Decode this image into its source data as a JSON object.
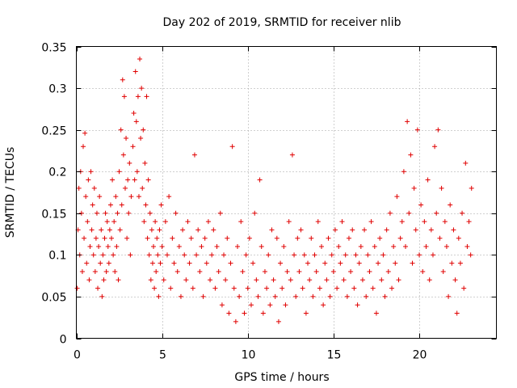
{
  "chart_data": {
    "type": "scatter",
    "title": "Day 202 of 2019, SRMTID for receiver nlib",
    "xlabel": "GPS time / hours",
    "ylabel": "SRMTID / TECUs",
    "xlim": [
      0,
      24.5
    ],
    "ylim": [
      0,
      0.35
    ],
    "xticks": [
      0,
      5,
      10,
      15,
      20
    ],
    "xtick_labels": [
      "0",
      "5",
      "10",
      "15",
      "20"
    ],
    "yticks": [
      0,
      0.05,
      0.1,
      0.15,
      0.2,
      0.25,
      0.3,
      0.35
    ],
    "ytick_labels": [
      "0",
      "0.05",
      "0.1",
      "0.15",
      "0.2",
      "0.25",
      "0.3",
      "0.35"
    ],
    "grid": true,
    "marker": "+",
    "series": [
      {
        "name": "SRMTID",
        "color": "#e00000",
        "points": [
          [
            0.05,
            0.06
          ],
          [
            0.1,
            0.13
          ],
          [
            0.15,
            0.18
          ],
          [
            0.2,
            0.1
          ],
          [
            0.25,
            0.2
          ],
          [
            0.3,
            0.15
          ],
          [
            0.35,
            0.08
          ],
          [
            0.4,
            0.23
          ],
          [
            0.45,
            0.12
          ],
          [
            0.5,
            0.246
          ],
          [
            0.55,
            0.17
          ],
          [
            0.6,
            0.09
          ],
          [
            0.65,
            0.14
          ],
          [
            0.7,
            0.19
          ],
          [
            0.75,
            0.07
          ],
          [
            0.8,
            0.11
          ],
          [
            0.85,
            0.2
          ],
          [
            0.9,
            0.13
          ],
          [
            0.95,
            0.16
          ],
          [
            1.0,
            0.1
          ],
          [
            1.05,
            0.18
          ],
          [
            1.1,
            0.08
          ],
          [
            1.15,
            0.12
          ],
          [
            1.2,
            0.15
          ],
          [
            1.25,
            0.06
          ],
          [
            1.3,
            0.11
          ],
          [
            1.35,
            0.17
          ],
          [
            1.4,
            0.09
          ],
          [
            1.45,
            0.13
          ],
          [
            1.5,
            0.05
          ],
          [
            1.55,
            0.1
          ],
          [
            1.6,
            0.07
          ],
          [
            1.65,
            0.12
          ],
          [
            1.7,
            0.15
          ],
          [
            1.75,
            0.08
          ],
          [
            1.8,
            0.14
          ],
          [
            1.85,
            0.11
          ],
          [
            1.9,
            0.09
          ],
          [
            1.95,
            0.13
          ],
          [
            2.0,
            0.16
          ],
          [
            2.05,
            0.12
          ],
          [
            2.1,
            0.19
          ],
          [
            2.15,
            0.1
          ],
          [
            2.2,
            0.14
          ],
          [
            2.25,
            0.08
          ],
          [
            2.3,
            0.17
          ],
          [
            2.35,
            0.11
          ],
          [
            2.4,
            0.15
          ],
          [
            2.45,
            0.07
          ],
          [
            2.5,
            0.2
          ],
          [
            2.55,
            0.13
          ],
          [
            2.6,
            0.25
          ],
          [
            2.65,
            0.16
          ],
          [
            2.7,
            0.31
          ],
          [
            2.75,
            0.22
          ],
          [
            2.8,
            0.29
          ],
          [
            2.85,
            0.18
          ],
          [
            2.9,
            0.24
          ],
          [
            2.95,
            0.12
          ],
          [
            3.0,
            0.19
          ],
          [
            3.05,
            0.15
          ],
          [
            3.1,
            0.21
          ],
          [
            3.15,
            0.1
          ],
          [
            3.2,
            0.17
          ],
          [
            3.3,
            0.23
          ],
          [
            3.35,
            0.27
          ],
          [
            3.4,
            0.19
          ],
          [
            3.45,
            0.32
          ],
          [
            3.5,
            0.26
          ],
          [
            3.55,
            0.2
          ],
          [
            3.6,
            0.29
          ],
          [
            3.65,
            0.17
          ],
          [
            3.7,
            0.335
          ],
          [
            3.75,
            0.24
          ],
          [
            3.8,
            0.3
          ],
          [
            3.85,
            0.18
          ],
          [
            3.9,
            0.25
          ],
          [
            3.95,
            0.14
          ],
          [
            4.0,
            0.21
          ],
          [
            4.05,
            0.16
          ],
          [
            4.1,
            0.29
          ],
          [
            4.15,
            0.12
          ],
          [
            4.2,
            0.19
          ],
          [
            4.25,
            0.1
          ],
          [
            4.3,
            0.15
          ],
          [
            4.35,
            0.07
          ],
          [
            4.4,
            0.13
          ],
          [
            4.45,
            0.09
          ],
          [
            4.5,
            0.11
          ],
          [
            4.55,
            0.06
          ],
          [
            4.6,
            0.14
          ],
          [
            4.65,
            0.08
          ],
          [
            4.7,
            0.12
          ],
          [
            4.75,
            0.1
          ],
          [
            4.8,
            0.05
          ],
          [
            4.85,
            0.13
          ],
          [
            4.9,
            0.09
          ],
          [
            4.95,
            0.16
          ],
          [
            5.0,
            0.11
          ],
          [
            5.1,
            0.07
          ],
          [
            5.2,
            0.14
          ],
          [
            5.3,
            0.1
          ],
          [
            5.4,
            0.17
          ],
          [
            5.5,
            0.06
          ],
          [
            5.6,
            0.12
          ],
          [
            5.7,
            0.09
          ],
          [
            5.8,
            0.15
          ],
          [
            5.9,
            0.08
          ],
          [
            6.0,
            0.11
          ],
          [
            6.1,
            0.05
          ],
          [
            6.2,
            0.13
          ],
          [
            6.3,
            0.1
          ],
          [
            6.4,
            0.07
          ],
          [
            6.5,
            0.14
          ],
          [
            6.6,
            0.09
          ],
          [
            6.7,
            0.12
          ],
          [
            6.8,
            0.06
          ],
          [
            6.9,
            0.22
          ],
          [
            7.0,
            0.1
          ],
          [
            7.1,
            0.13
          ],
          [
            7.2,
            0.08
          ],
          [
            7.3,
            0.11
          ],
          [
            7.4,
            0.05
          ],
          [
            7.5,
            0.12
          ],
          [
            7.6,
            0.09
          ],
          [
            7.7,
            0.14
          ],
          [
            7.8,
            0.07
          ],
          [
            7.9,
            0.1
          ],
          [
            8.0,
            0.13
          ],
          [
            8.1,
            0.06
          ],
          [
            8.2,
            0.11
          ],
          [
            8.3,
            0.08
          ],
          [
            8.4,
            0.15
          ],
          [
            8.5,
            0.04
          ],
          [
            8.6,
            0.1
          ],
          [
            8.7,
            0.07
          ],
          [
            8.8,
            0.12
          ],
          [
            8.9,
            0.03
          ],
          [
            9.0,
            0.09
          ],
          [
            9.1,
            0.23
          ],
          [
            9.2,
            0.06
          ],
          [
            9.3,
            0.02
          ],
          [
            9.4,
            0.11
          ],
          [
            9.5,
            0.05
          ],
          [
            9.6,
            0.14
          ],
          [
            9.7,
            0.08
          ],
          [
            9.8,
            0.03
          ],
          [
            9.9,
            0.1
          ],
          [
            10.0,
            0.06
          ],
          [
            10.1,
            0.12
          ],
          [
            10.2,
            0.04
          ],
          [
            10.3,
            0.09
          ],
          [
            10.4,
            0.15
          ],
          [
            10.5,
            0.07
          ],
          [
            10.6,
            0.05
          ],
          [
            10.7,
            0.19
          ],
          [
            10.8,
            0.11
          ],
          [
            10.9,
            0.03
          ],
          [
            11.0,
            0.08
          ],
          [
            11.1,
            0.06
          ],
          [
            11.2,
            0.1
          ],
          [
            11.3,
            0.04
          ],
          [
            11.4,
            0.13
          ],
          [
            11.5,
            0.07
          ],
          [
            11.6,
            0.05
          ],
          [
            11.7,
            0.12
          ],
          [
            11.8,
            0.02
          ],
          [
            11.9,
            0.09
          ],
          [
            12.0,
            0.06
          ],
          [
            12.1,
            0.11
          ],
          [
            12.2,
            0.04
          ],
          [
            12.3,
            0.08
          ],
          [
            12.4,
            0.14
          ],
          [
            12.5,
            0.07
          ],
          [
            12.6,
            0.22
          ],
          [
            12.7,
            0.1
          ],
          [
            12.8,
            0.05
          ],
          [
            12.9,
            0.12
          ],
          [
            13.0,
            0.08
          ],
          [
            13.1,
            0.13
          ],
          [
            13.2,
            0.06
          ],
          [
            13.3,
            0.1
          ],
          [
            13.4,
            0.03
          ],
          [
            13.5,
            0.09
          ],
          [
            13.6,
            0.07
          ],
          [
            13.7,
            0.12
          ],
          [
            13.8,
            0.05
          ],
          [
            13.9,
            0.1
          ],
          [
            14.0,
            0.08
          ],
          [
            14.1,
            0.14
          ],
          [
            14.2,
            0.06
          ],
          [
            14.3,
            0.11
          ],
          [
            14.4,
            0.04
          ],
          [
            14.5,
            0.09
          ],
          [
            14.6,
            0.07
          ],
          [
            14.7,
            0.12
          ],
          [
            14.8,
            0.05
          ],
          [
            14.9,
            0.1
          ],
          [
            15.0,
            0.08
          ],
          [
            15.1,
            0.13
          ],
          [
            15.2,
            0.06
          ],
          [
            15.3,
            0.11
          ],
          [
            15.4,
            0.09
          ],
          [
            15.5,
            0.14
          ],
          [
            15.6,
            0.07
          ],
          [
            15.7,
            0.1
          ],
          [
            15.8,
            0.05
          ],
          [
            15.9,
            0.12
          ],
          [
            16.0,
            0.08
          ],
          [
            16.1,
            0.13
          ],
          [
            16.2,
            0.06
          ],
          [
            16.3,
            0.1
          ],
          [
            16.4,
            0.04
          ],
          [
            16.5,
            0.09
          ],
          [
            16.6,
            0.11
          ],
          [
            16.7,
            0.07
          ],
          [
            16.8,
            0.13
          ],
          [
            16.9,
            0.05
          ],
          [
            17.0,
            0.1
          ],
          [
            17.1,
            0.08
          ],
          [
            17.2,
            0.14
          ],
          [
            17.3,
            0.06
          ],
          [
            17.4,
            0.11
          ],
          [
            17.5,
            0.03
          ],
          [
            17.6,
            0.09
          ],
          [
            17.7,
            0.12
          ],
          [
            17.8,
            0.07
          ],
          [
            17.9,
            0.1
          ],
          [
            18.0,
            0.05
          ],
          [
            18.1,
            0.13
          ],
          [
            18.2,
            0.08
          ],
          [
            18.3,
            0.15
          ],
          [
            18.4,
            0.06
          ],
          [
            18.5,
            0.11
          ],
          [
            18.6,
            0.09
          ],
          [
            18.7,
            0.17
          ],
          [
            18.8,
            0.07
          ],
          [
            18.9,
            0.12
          ],
          [
            19.0,
            0.14
          ],
          [
            19.1,
            0.2
          ],
          [
            19.2,
            0.11
          ],
          [
            19.3,
            0.26
          ],
          [
            19.4,
            0.15
          ],
          [
            19.5,
            0.22
          ],
          [
            19.6,
            0.09
          ],
          [
            19.7,
            0.18
          ],
          [
            19.8,
            0.13
          ],
          [
            19.9,
            0.25
          ],
          [
            20.0,
            0.1
          ],
          [
            20.1,
            0.16
          ],
          [
            20.2,
            0.08
          ],
          [
            20.3,
            0.14
          ],
          [
            20.4,
            0.11
          ],
          [
            20.5,
            0.19
          ],
          [
            20.6,
            0.07
          ],
          [
            20.7,
            0.13
          ],
          [
            20.8,
            0.1
          ],
          [
            20.9,
            0.23
          ],
          [
            21.0,
            0.15
          ],
          [
            21.1,
            0.25
          ],
          [
            21.2,
            0.12
          ],
          [
            21.3,
            0.18
          ],
          [
            21.4,
            0.08
          ],
          [
            21.5,
            0.14
          ],
          [
            21.6,
            0.11
          ],
          [
            21.7,
            0.05
          ],
          [
            21.8,
            0.16
          ],
          [
            21.9,
            0.09
          ],
          [
            22.0,
            0.13
          ],
          [
            22.1,
            0.07
          ],
          [
            22.2,
            0.03
          ],
          [
            22.3,
            0.12
          ],
          [
            22.4,
            0.09
          ],
          [
            22.5,
            0.15
          ],
          [
            22.6,
            0.06
          ],
          [
            22.7,
            0.21
          ],
          [
            22.8,
            0.11
          ],
          [
            22.9,
            0.14
          ],
          [
            23.0,
            0.1
          ],
          [
            23.05,
            0.18
          ]
        ]
      }
    ]
  }
}
